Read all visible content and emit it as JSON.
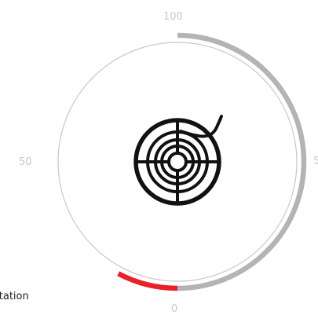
{
  "gauge": {
    "scale_labels": {
      "top": "100",
      "left": "50",
      "right": "5",
      "bottom": "0"
    },
    "filled_fraction": 0.5,
    "low_warning_fraction": 0.05,
    "colors": {
      "track": "#c8c8c8",
      "fill": "#b4b4b8",
      "warning": "#e8202a",
      "icon": "#111111"
    },
    "icon": "filament-spool-icon"
  },
  "station_label": "station"
}
